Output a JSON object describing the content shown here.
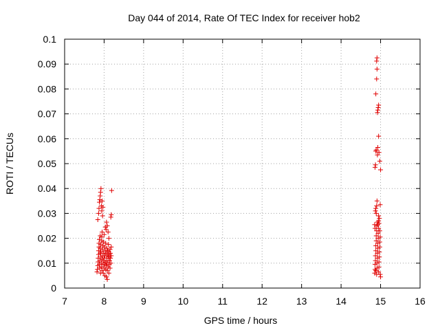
{
  "chart_data": {
    "type": "scatter",
    "title": "Day 044 of 2014, Rate Of TEC Index for receiver hob2",
    "xlabel": "GPS time / hours",
    "ylabel": "ROTI / TECUs",
    "xlim": [
      7,
      16
    ],
    "ylim": [
      0,
      0.1
    ],
    "x_ticks": [
      7,
      8,
      9,
      10,
      11,
      12,
      13,
      14,
      15,
      16
    ],
    "y_ticks": [
      0,
      0.01,
      0.02,
      0.03,
      0.04,
      0.05,
      0.06,
      0.07,
      0.08,
      0.09,
      0.1
    ],
    "x_tick_labels": [
      "7",
      "8",
      "9",
      "10",
      "11",
      "12",
      "13",
      "14",
      "15",
      "16"
    ],
    "y_tick_labels": [
      "0",
      "0.01",
      "0.02",
      "0.03",
      "0.04",
      "0.05",
      "0.06",
      "0.07",
      "0.08",
      "0.09",
      "0.1"
    ],
    "grid": true,
    "marker": "plus",
    "color": "#e00000",
    "series": [
      {
        "points": [
          [
            7.82,
            0.0065
          ],
          [
            7.83,
            0.0075
          ],
          [
            7.84,
            0.009
          ],
          [
            7.85,
            0.0105
          ],
          [
            7.85,
            0.012
          ],
          [
            7.86,
            0.0135
          ],
          [
            7.86,
            0.015
          ],
          [
            7.87,
            0.0165
          ],
          [
            7.87,
            0.018
          ],
          [
            7.88,
            0.0195
          ],
          [
            7.88,
            0.0095
          ],
          [
            7.89,
            0.011
          ],
          [
            7.89,
            0.008
          ],
          [
            7.9,
            0.014
          ],
          [
            7.9,
            0.016
          ],
          [
            7.91,
            0.0175
          ],
          [
            7.91,
            0.006
          ],
          [
            7.92,
            0.0125
          ],
          [
            7.92,
            0.0145
          ],
          [
            7.93,
            0.01
          ],
          [
            7.93,
            0.0085
          ],
          [
            7.94,
            0.019
          ],
          [
            7.94,
            0.0205
          ],
          [
            7.95,
            0.007
          ],
          [
            7.95,
            0.0115
          ],
          [
            7.96,
            0.013
          ],
          [
            7.96,
            0.0155
          ],
          [
            7.97,
            0.017
          ],
          [
            7.97,
            0.0095
          ],
          [
            7.98,
            0.0185
          ],
          [
            7.98,
            0.006
          ],
          [
            7.99,
            0.011
          ],
          [
            7.99,
            0.014
          ],
          [
            8.0,
            0.008
          ],
          [
            8.0,
            0.012
          ],
          [
            8.01,
            0.0165
          ],
          [
            8.01,
            0.0095
          ],
          [
            8.02,
            0.005
          ],
          [
            8.02,
            0.013
          ],
          [
            8.03,
            0.015
          ],
          [
            8.03,
            0.0105
          ],
          [
            8.04,
            0.0075
          ],
          [
            8.04,
            0.018
          ],
          [
            8.05,
            0.014
          ],
          [
            8.05,
            0.009
          ],
          [
            8.06,
            0.0045
          ],
          [
            8.06,
            0.012
          ],
          [
            8.07,
            0.016
          ],
          [
            8.07,
            0.01
          ],
          [
            8.08,
            0.0035
          ],
          [
            8.08,
            0.007
          ],
          [
            8.09,
            0.0135
          ],
          [
            8.09,
            0.015
          ],
          [
            8.1,
            0.011
          ],
          [
            8.1,
            0.0085
          ],
          [
            8.11,
            0.0175
          ],
          [
            8.11,
            0.0125
          ],
          [
            8.12,
            0.006
          ],
          [
            8.12,
            0.0145
          ],
          [
            8.13,
            0.0095
          ],
          [
            8.13,
            0.013
          ],
          [
            8.14,
            0.011
          ],
          [
            8.15,
            0.0155
          ],
          [
            8.15,
            0.008
          ],
          [
            8.16,
            0.012
          ],
          [
            8.16,
            0.014
          ],
          [
            8.17,
            0.01
          ],
          [
            8.18,
            0.0165
          ],
          [
            8.18,
            0.013
          ],
          [
            7.9,
            0.021
          ],
          [
            7.95,
            0.0225
          ],
          [
            8.0,
            0.0215
          ],
          [
            8.05,
            0.0235
          ],
          [
            8.08,
            0.025
          ],
          [
            8.1,
            0.0225
          ],
          [
            8.12,
            0.02
          ],
          [
            8.06,
            0.0265
          ],
          [
            8.03,
            0.0245
          ],
          [
            7.84,
            0.0275
          ],
          [
            7.86,
            0.03
          ],
          [
            7.87,
            0.032
          ],
          [
            7.88,
            0.0345
          ],
          [
            7.89,
            0.0355
          ],
          [
            7.9,
            0.037
          ],
          [
            7.91,
            0.0385
          ],
          [
            7.92,
            0.04
          ],
          [
            7.93,
            0.033
          ],
          [
            7.94,
            0.031
          ],
          [
            7.95,
            0.035
          ],
          [
            7.97,
            0.0325
          ],
          [
            7.96,
            0.029
          ],
          [
            8.17,
            0.0285
          ],
          [
            8.18,
            0.0295
          ],
          [
            8.19,
            0.0392
          ]
        ]
      },
      {
        "points": [
          [
            14.85,
            0.006
          ],
          [
            14.86,
            0.0075
          ],
          [
            14.86,
            0.0095
          ],
          [
            14.87,
            0.011
          ],
          [
            14.87,
            0.013
          ],
          [
            14.88,
            0.015
          ],
          [
            14.88,
            0.017
          ],
          [
            14.89,
            0.019
          ],
          [
            14.89,
            0.021
          ],
          [
            14.9,
            0.023
          ],
          [
            14.9,
            0.025
          ],
          [
            14.91,
            0.008
          ],
          [
            14.91,
            0.01
          ],
          [
            14.92,
            0.012
          ],
          [
            14.92,
            0.014
          ],
          [
            14.93,
            0.016
          ],
          [
            14.93,
            0.018
          ],
          [
            14.94,
            0.02
          ],
          [
            14.94,
            0.022
          ],
          [
            14.95,
            0.024
          ],
          [
            14.95,
            0.0065
          ],
          [
            14.96,
            0.0085
          ],
          [
            14.96,
            0.0105
          ],
          [
            14.97,
            0.0125
          ],
          [
            14.97,
            0.0145
          ],
          [
            14.98,
            0.0165
          ],
          [
            14.98,
            0.0185
          ],
          [
            14.99,
            0.0205
          ],
          [
            14.99,
            0.0055
          ],
          [
            15.0,
            0.0045
          ],
          [
            14.9,
            0.0055
          ],
          [
            14.88,
            0.007
          ],
          [
            14.95,
            0.027
          ],
          [
            14.96,
            0.026
          ],
          [
            14.97,
            0.028
          ],
          [
            14.92,
            0.0265
          ],
          [
            14.93,
            0.0255
          ],
          [
            14.98,
            0.023
          ],
          [
            14.85,
            0.0255
          ],
          [
            14.86,
            0.024
          ],
          [
            14.87,
            0.031
          ],
          [
            14.88,
            0.032
          ],
          [
            14.89,
            0.03
          ],
          [
            14.9,
            0.033
          ],
          [
            14.91,
            0.035
          ],
          [
            14.99,
            0.0335
          ],
          [
            14.95,
            0.029
          ],
          [
            14.86,
            0.0485
          ],
          [
            14.87,
            0.0495
          ],
          [
            14.88,
            0.055
          ],
          [
            14.89,
            0.0555
          ],
          [
            14.92,
            0.0535
          ],
          [
            14.93,
            0.0565
          ],
          [
            14.96,
            0.0545
          ],
          [
            14.98,
            0.051
          ],
          [
            15.0,
            0.0475
          ],
          [
            14.95,
            0.061
          ],
          [
            14.92,
            0.0705
          ],
          [
            14.93,
            0.0715
          ],
          [
            14.94,
            0.0725
          ],
          [
            14.95,
            0.0735
          ],
          [
            14.88,
            0.078
          ],
          [
            14.9,
            0.084
          ],
          [
            14.91,
            0.088
          ],
          [
            14.9,
            0.0912
          ],
          [
            14.91,
            0.0925
          ]
        ]
      }
    ]
  }
}
